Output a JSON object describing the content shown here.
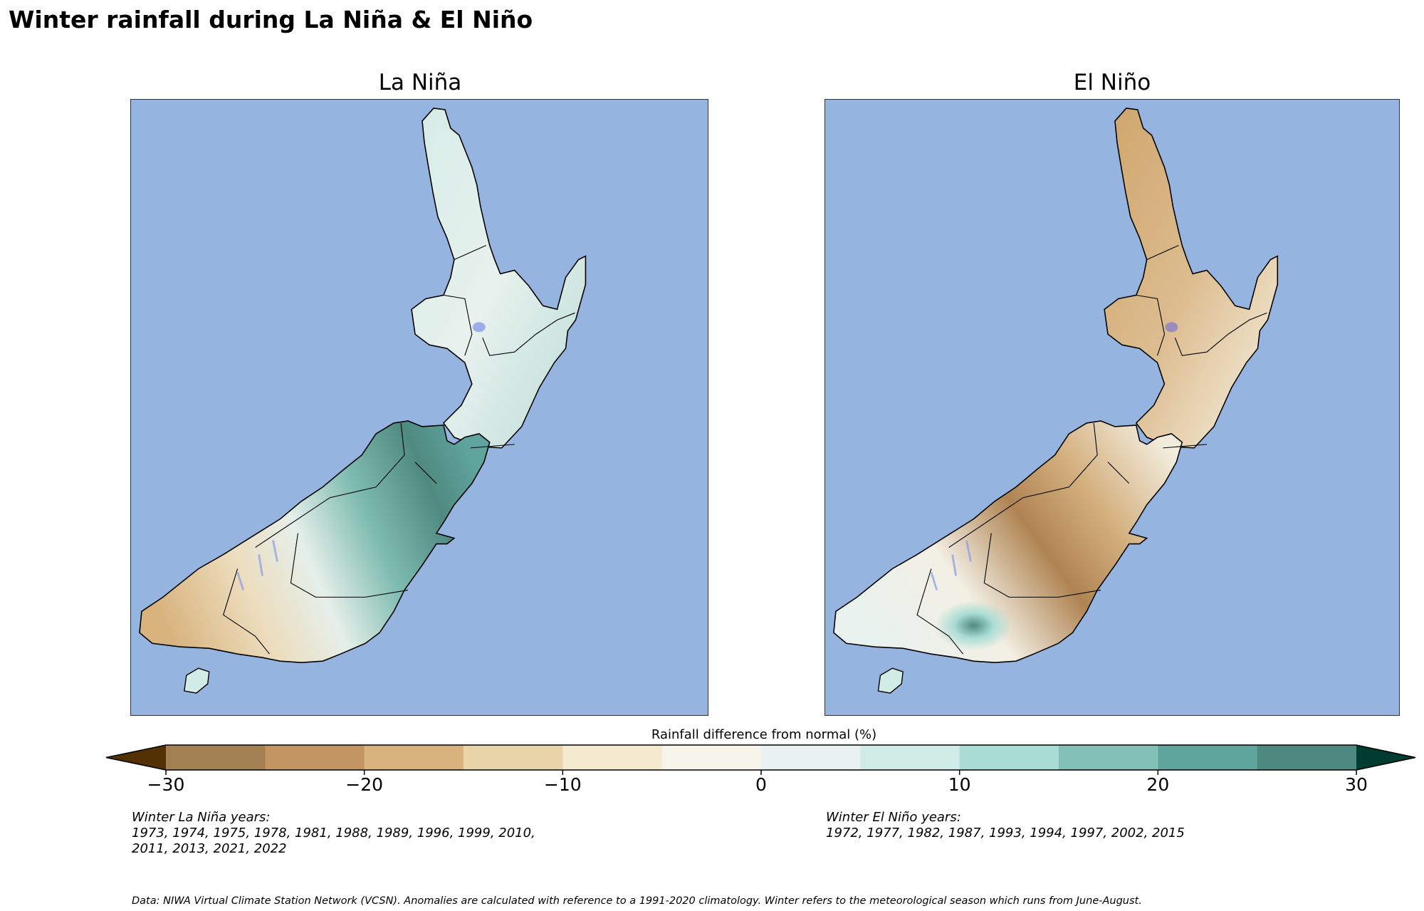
{
  "title": "Winter rainfall during La Niña & El Niño",
  "panels": [
    {
      "title": "La Niña",
      "years_heading": "Winter La Niña years:",
      "years_line1": "1973, 1974, 1975, 1978, 1981, 1988, 1989, 1996, 1999, 2010,",
      "years_line2": "2011, 2013, 2021, 2022"
    },
    {
      "title": "El Niño",
      "years_heading": "Winter El Niño years:",
      "years_line1": "1972, 1977, 1982, 1987, 1993, 1994, 1997, 2002, 2015",
      "years_line2": ""
    }
  ],
  "colorbar": {
    "label": "Rainfall difference from normal (%)",
    "ticks": [
      "−30",
      "−20",
      "−10",
      "0",
      "10",
      "20",
      "30"
    ],
    "under_color": "#543005",
    "over_color": "#003c30",
    "colors": [
      "#a38052",
      "#c29563",
      "#d8b37e",
      "#ead5a8",
      "#f5ead0",
      "#f6f4ea",
      "#eaf3f1",
      "#d1ebe6",
      "#a9ddd3",
      "#84c1b6",
      "#5fa59e",
      "#4f8a80"
    ]
  },
  "footer": "Data: NIWA Virtual Climate Station Network (VCSN). Anomalies are calculated with reference to a 1991-2020 climatology. Winter refers to the meteorological season which runs from June-August.",
  "colors": {
    "ocean": "#96b4e0",
    "coast": "#000000",
    "rivers": "#8a9ee8"
  },
  "chart_data": {
    "type": "heatmap",
    "title": "Winter rainfall during La Niña & El Niño",
    "subplots": [
      {
        "title": "La Niña",
        "description": "Map of New Zealand showing winter rainfall anomaly composite; wetter than normal (teal, +10 to +30%) over northern & eastern South Island (Marlborough, Canterbury, Otago) and eastern North Island; slightly drier (tan, −5 to −15%) along West Coast and Fiordland.",
        "years": [
          1973,
          1974,
          1975,
          1978,
          1981,
          1988,
          1989,
          1996,
          1999,
          2010,
          2011,
          2013,
          2021,
          2022
        ]
      },
      {
        "title": "El Niño",
        "description": "Map of New Zealand showing winter rainfall anomaly composite; drier than normal (tan/brown, −10 to −30%) over most of North Island and eastern South Island (Canterbury); near normal/wetter (teal) in Southland and Otago interior.",
        "years": [
          1972,
          1977,
          1982,
          1987,
          1993,
          1994,
          1997,
          2002,
          2015
        ]
      }
    ],
    "colorbar": {
      "label": "Rainfall difference from normal (%)",
      "range": [
        -30,
        30
      ],
      "step": 5,
      "ticks": [
        -30,
        -20,
        -10,
        0,
        10,
        20,
        30
      ],
      "extend": "both",
      "colormap": "BrBG"
    },
    "grid": false
  }
}
